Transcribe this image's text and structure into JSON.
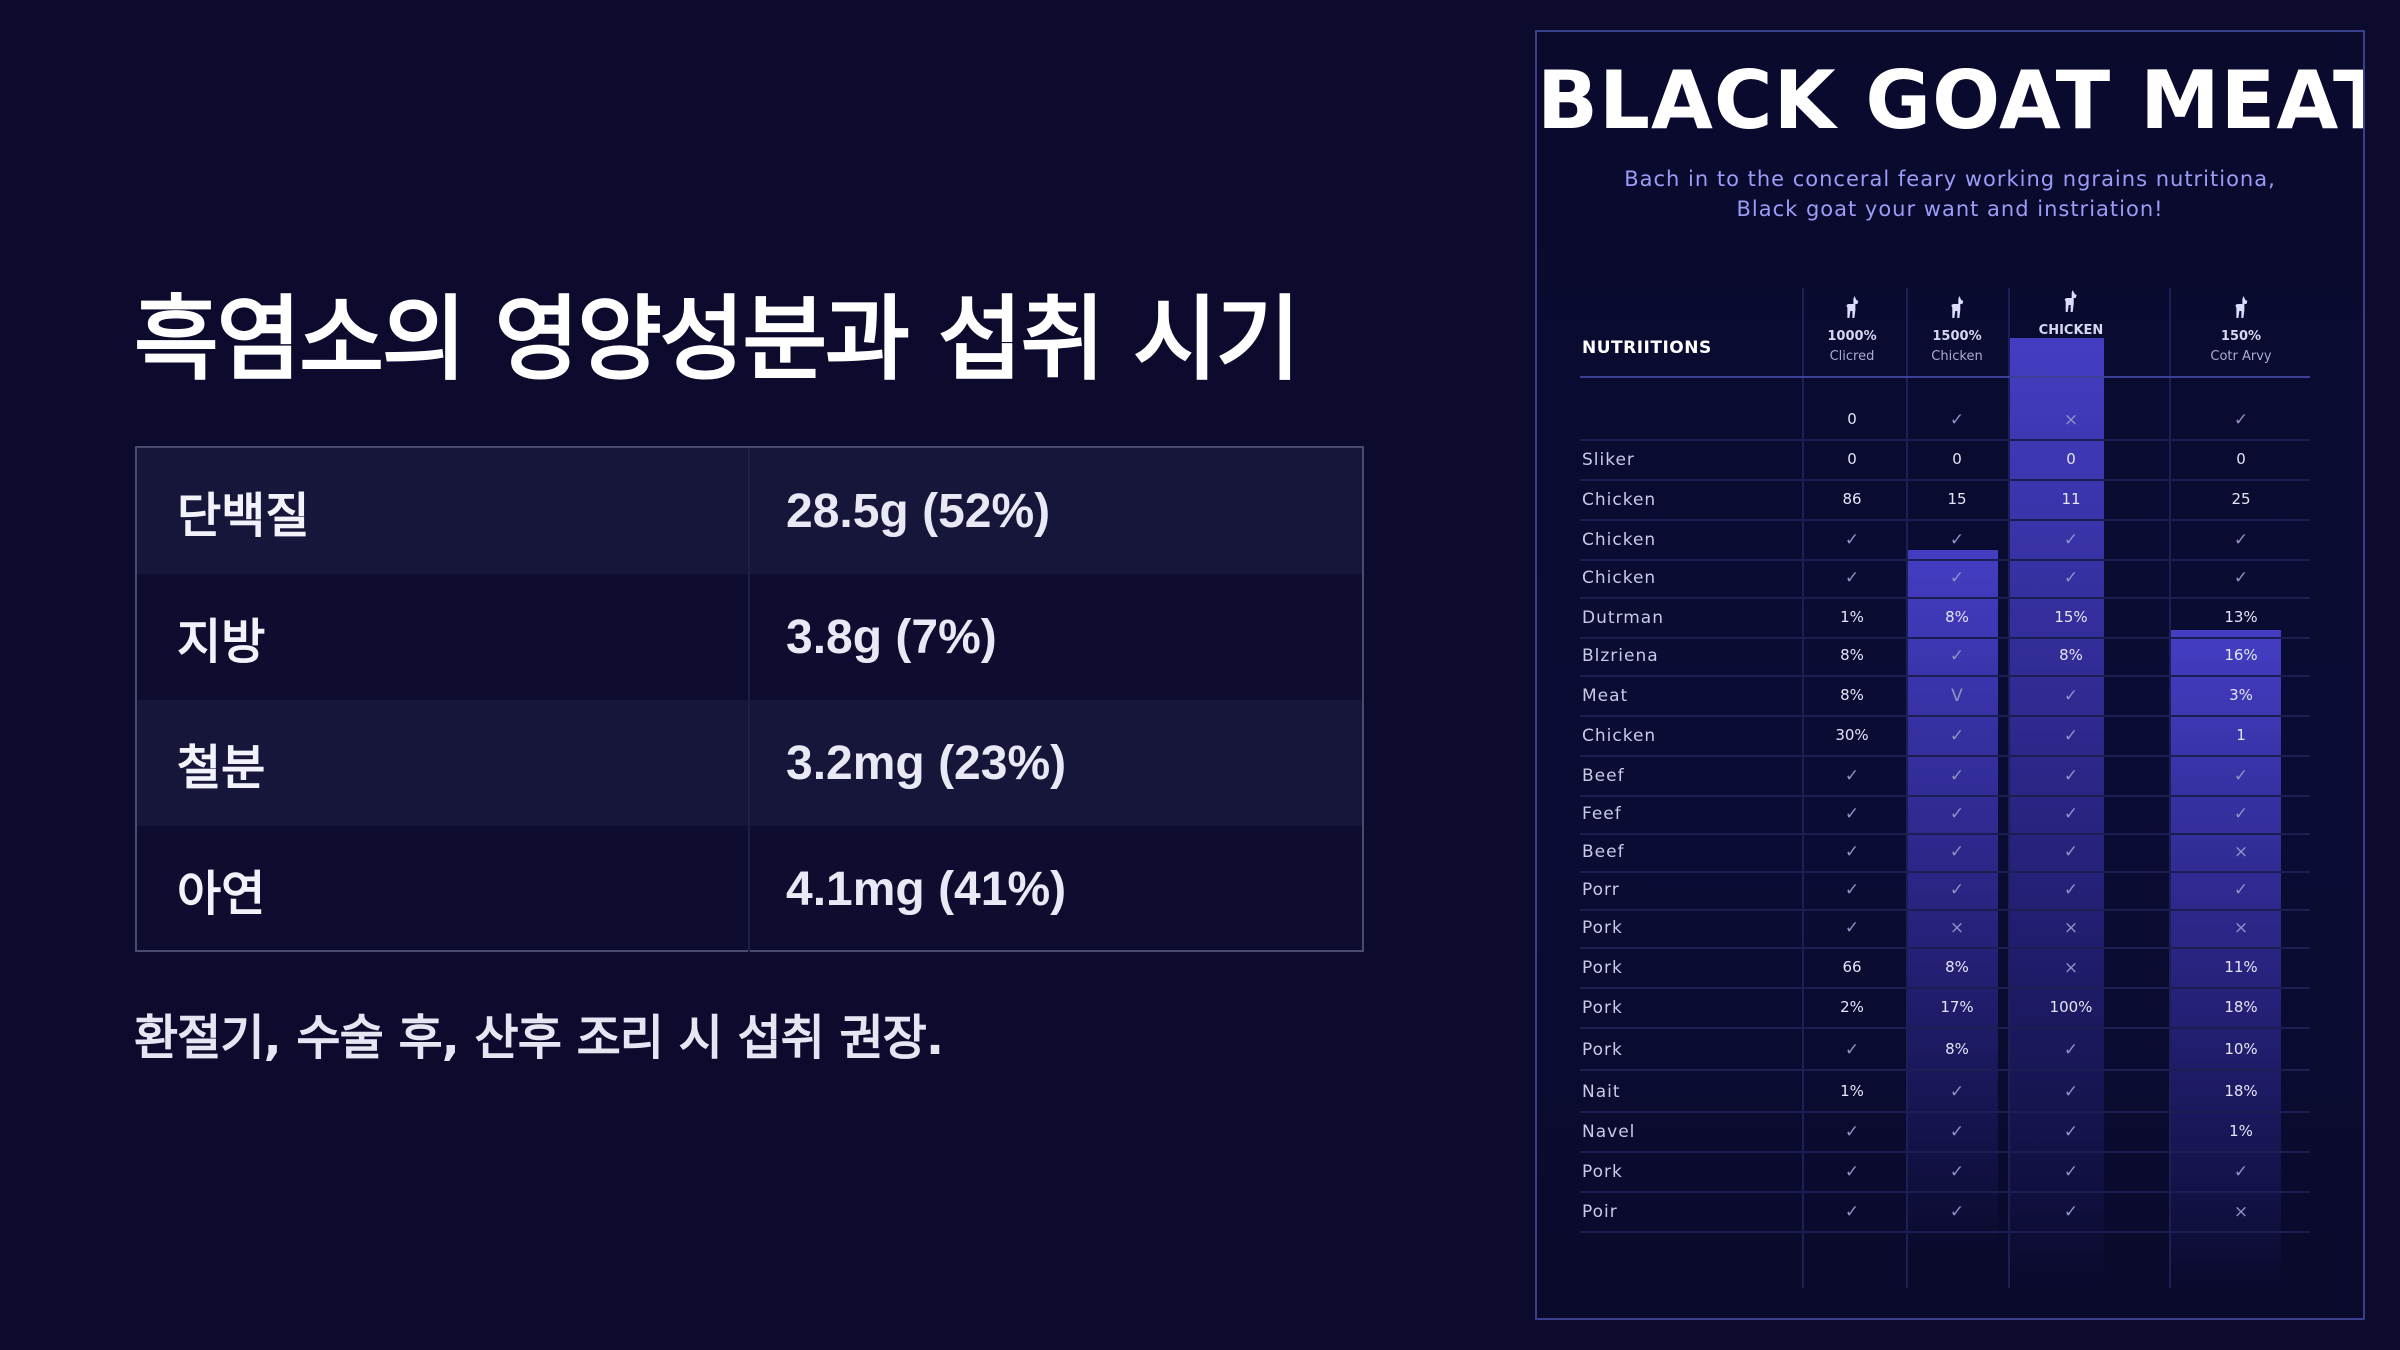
{
  "page": {
    "title": "흑염소의 영양성분과 섭취 시기",
    "nutrients": [
      {
        "name": "단백질",
        "value": "28.5g (52%)"
      },
      {
        "name": "지방",
        "value": "3.8g (7%)"
      },
      {
        "name": "철분",
        "value": "3.2mg (23%)"
      },
      {
        "name": "아연",
        "value": "4.1mg (41%)"
      }
    ],
    "note": "환절기, 수술 후, 산후 조리 시 섭취 권장."
  },
  "poster": {
    "title": "BLACK GOAT MEAT",
    "subtitle_lines": [
      "Bach in to the conceral feary working ngrains nutritiona,",
      "Black goat your want and instriation!"
    ],
    "nutritions_header": "NUTRIITIONS",
    "columns": [
      {
        "top": "1000%",
        "bottom": "Clicred",
        "icon": "goat-icon"
      },
      {
        "top": "1500%",
        "bottom": "Chicken",
        "icon": "goat-icon"
      },
      {
        "top": "CHICKEN",
        "bottom": "",
        "icon": "goat-icon"
      },
      {
        "top": "150%",
        "bottom": "Cotr Arvy",
        "icon": "goat-icon"
      }
    ],
    "rows": [
      {
        "label": "",
        "cells": [
          "0",
          "✓",
          "×",
          "✓"
        ]
      },
      {
        "label": "Sliker",
        "cells": [
          "0",
          "0",
          "0",
          "0"
        ]
      },
      {
        "label": "Chicken",
        "cells": [
          "86",
          "15",
          "11",
          "25"
        ]
      },
      {
        "label": "Chicken",
        "cells": [
          "✓",
          "✓",
          "✓",
          "✓"
        ]
      },
      {
        "label": "Chicken",
        "cells": [
          "✓",
          "✓",
          "✓",
          "✓"
        ]
      },
      {
        "label": "Dutrman",
        "cells": [
          "1%",
          "8%",
          "15%",
          "13%"
        ]
      },
      {
        "label": "Blzriena",
        "cells": [
          "8%",
          "✓",
          "8%",
          "16%"
        ]
      },
      {
        "label": "Meat",
        "cells": [
          "8%",
          "V",
          "✓",
          "3%"
        ]
      },
      {
        "label": "Chicken",
        "cells": [
          "30%",
          "✓",
          "✓",
          "1"
        ]
      },
      {
        "label": "Beef",
        "cells": [
          "✓",
          "✓",
          "✓",
          "✓"
        ]
      },
      {
        "label": "Feef",
        "cells": [
          "✓",
          "✓",
          "✓",
          "✓"
        ]
      },
      {
        "label": "Beef",
        "cells": [
          "✓",
          "✓",
          "✓",
          "×"
        ]
      },
      {
        "label": "Porr",
        "cells": [
          "✓",
          "✓",
          "✓",
          "✓"
        ]
      },
      {
        "label": "Pork",
        "cells": [
          "✓",
          "×",
          "×",
          "×"
        ]
      },
      {
        "label": "Pork",
        "cells": [
          "66",
          "8%",
          "×",
          "11%"
        ]
      },
      {
        "label": "Pork",
        "cells": [
          "2%",
          "17%",
          "100%",
          "18%"
        ]
      },
      {
        "label": "Pork",
        "cells": [
          "✓",
          "8%",
          "✓",
          "10%"
        ]
      },
      {
        "label": "Nait",
        "cells": [
          "1%",
          "✓",
          "✓",
          "18%"
        ]
      },
      {
        "label": "Navel",
        "cells": [
          "✓",
          "✓",
          "✓",
          "1%"
        ]
      },
      {
        "label": "Pork",
        "cells": [
          "✓",
          "✓",
          "✓",
          "✓"
        ]
      },
      {
        "label": "Poir",
        "cells": [
          "✓",
          "✓",
          "✓",
          "×"
        ]
      }
    ]
  }
}
